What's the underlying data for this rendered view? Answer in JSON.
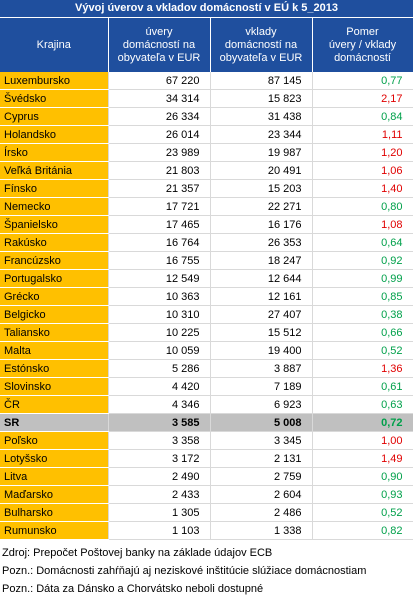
{
  "title": "Vývoj úverov a vkladov domácností v EÚ k 5_2013",
  "table": {
    "columns": [
      "Krajina",
      "úvery\ndomácností na\nobyvateľa v EUR",
      "vklady\ndomácností na\nobyvateľa v EUR",
      "Pomer\núvery / vklady\ndomácností"
    ],
    "rows": [
      [
        "Luxembursko",
        "67 220",
        "87 145",
        "0,77"
      ],
      [
        "Švédsko",
        "34 314",
        "15 823",
        "2,17"
      ],
      [
        "Cyprus",
        "26 334",
        "31 438",
        "0,84"
      ],
      [
        "Holandsko",
        "26 014",
        "23 344",
        "1,11"
      ],
      [
        "Írsko",
        "23 989",
        "19 987",
        "1,20"
      ],
      [
        "Veľká Británia",
        "21 803",
        "20 491",
        "1,06"
      ],
      [
        "Fínsko",
        "21 357",
        "15 203",
        "1,40"
      ],
      [
        "Nemecko",
        "17 721",
        "22 271",
        "0,80"
      ],
      [
        "Španielsko",
        "17 465",
        "16 176",
        "1,08"
      ],
      [
        "Rakúsko",
        "16 764",
        "26 353",
        "0,64"
      ],
      [
        "Francúzsko",
        "16 755",
        "18 247",
        "0,92"
      ],
      [
        "Portugalsko",
        "12 549",
        "12 644",
        "0,99"
      ],
      [
        "Grécko",
        "10 363",
        "12 161",
        "0,85"
      ],
      [
        "Belgicko",
        "10 310",
        "27 407",
        "0,38"
      ],
      [
        "Taliansko",
        "10 225",
        "15 512",
        "0,66"
      ],
      [
        "Malta",
        "10 059",
        "19 400",
        "0,52"
      ],
      [
        "Estónsko",
        "5 286",
        "3 887",
        "1,36"
      ],
      [
        "Slovinsko",
        "4 420",
        "7 189",
        "0,61"
      ],
      [
        "ČR",
        "4 346",
        "6 923",
        "0,63"
      ],
      [
        "SR",
        "3 585",
        "5 008",
        "0,72"
      ],
      [
        "Poľsko",
        "3 358",
        "3 345",
        "1,00"
      ],
      [
        "Lotyšsko",
        "3 172",
        "2 131",
        "1,49"
      ],
      [
        "Litva",
        "2 490",
        "2 759",
        "0,90"
      ],
      [
        "Maďarsko",
        "2 433",
        "2 604",
        "0,93"
      ],
      [
        "Bulharsko",
        "1 305",
        "2 486",
        "0,52"
      ],
      [
        "Rumunsko",
        "1 103",
        "1 338",
        "0,82"
      ]
    ],
    "highlight_row": 19,
    "ratio_colors": {
      "below_one": "#00a04a",
      "one_or_more": "#e00000"
    }
  },
  "notes": [
    "Zdroj: Prepočet Poštovej banky na základe údajov ECB",
    "Pozn.: Domácnosti zahŕňajú aj neziskové inštitúcie slúžiace domácnostiam",
    "Pozn.: Dáta za Dánsko a Chorvátsko neboli dostupné"
  ]
}
